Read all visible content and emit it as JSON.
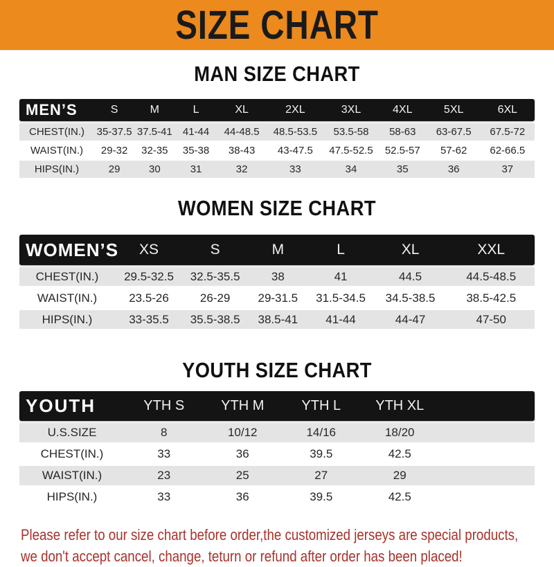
{
  "colors": {
    "banner_bg": "#EC8A1E",
    "bar_bg": "#141414",
    "stripe_row": "#E4E4E4",
    "footer_text": "#A8322A",
    "heading_text": "#101010"
  },
  "banner": {
    "title": "SIZE CHART"
  },
  "men": {
    "heading": "MAN SIZE CHART",
    "header": {
      "label": "MEN’S",
      "cols": [
        "S",
        "M",
        "L",
        "XL",
        "2XL",
        "3XL",
        "4XL",
        "5XL",
        "6XL"
      ]
    },
    "rows": [
      {
        "label": "CHEST(IN.)",
        "values": [
          "35-37.5",
          "37.5-41",
          "41-44",
          "44-48.5",
          "48.5-53.5",
          "53.5-58",
          "58-63",
          "63-67.5",
          "67.5-72"
        ]
      },
      {
        "label": "WAIST(IN.)",
        "values": [
          "29-32",
          "32-35",
          "35-38",
          "38-43",
          "43-47.5",
          "47.5-52.5",
          "52.5-57",
          "57-62",
          "62-66.5"
        ]
      },
      {
        "label": "HIPS(IN.)",
        "values": [
          "29",
          "30",
          "31",
          "32",
          "33",
          "34",
          "35",
          "36",
          "37"
        ]
      }
    ]
  },
  "women": {
    "heading": "WOMEN SIZE CHART",
    "header": {
      "label": "WOMEN’S",
      "cols": [
        "XS",
        "S",
        "M",
        "L",
        "XL",
        "XXL"
      ]
    },
    "rows": [
      {
        "label": "CHEST(IN.)",
        "values": [
          "29.5-32.5",
          "32.5-35.5",
          "38",
          "41",
          "44.5",
          "44.5-48.5"
        ]
      },
      {
        "label": "WAIST(IN.)",
        "values": [
          "23.5-26",
          "26-29",
          "29-31.5",
          "31.5-34.5",
          "34.5-38.5",
          "38.5-42.5"
        ]
      },
      {
        "label": "HIPS(IN.)",
        "values": [
          "33-35.5",
          "35.5-38.5",
          "38.5-41",
          "41-44",
          "44-47",
          "47-50"
        ]
      }
    ]
  },
  "youth": {
    "heading": "YOUTH SIZE CHART",
    "header": {
      "label": "YOUTH",
      "cols": [
        "YTH S",
        "YTH M",
        "YTH L",
        "YTH XL"
      ]
    },
    "rows": [
      {
        "label": "U.S.SIZE",
        "values": [
          "8",
          "10/12",
          "14/16",
          "18/20"
        ]
      },
      {
        "label": "CHEST(IN.)",
        "values": [
          "33",
          "36",
          "39.5",
          "42.5"
        ]
      },
      {
        "label": "WAIST(IN.)",
        "values": [
          "23",
          "25",
          "27",
          "29"
        ]
      },
      {
        "label": "HIPS(IN.)",
        "values": [
          "33",
          "36",
          "39.5",
          "42.5"
        ]
      }
    ]
  },
  "footer": {
    "line1": "Please refer to our size chart before order,the customized jerseys are special products,",
    "line2": "we don't accept cancel, change, teturn or refund after order has been placed!"
  }
}
